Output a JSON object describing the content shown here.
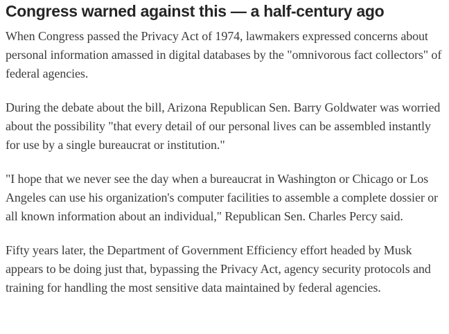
{
  "article": {
    "headline": "Congress warned against this — a half-century ago",
    "paragraphs": [
      "When Congress passed the Privacy Act of 1974, lawmakers expressed concerns about personal information amassed in digital databases by the \"omnivorous fact collectors\" of federal agencies.",
      "During the debate about the bill, Arizona Republican Sen. Barry Goldwater was worried about the possibility \"that every detail of our personal lives can be assembled instantly for use by a single bureaucrat or institution.\"",
      "\"I hope that we never see the day when a bureaucrat in Washington or Chicago or Los Angeles can use his organization's computer facilities to assemble a complete dossier or all known information about an individual,\" Republican Sen. Charles Percy said.",
      "Fifty years later, the Department of Government Efficiency effort headed by Musk appears to be doing just that, bypassing the Privacy Act, agency security protocols and training for handling the most sensitive data maintained by federal agencies."
    ],
    "colors": {
      "background": "#ffffff",
      "headline_text": "#252525",
      "body_text": "#3b3b3b"
    }
  }
}
